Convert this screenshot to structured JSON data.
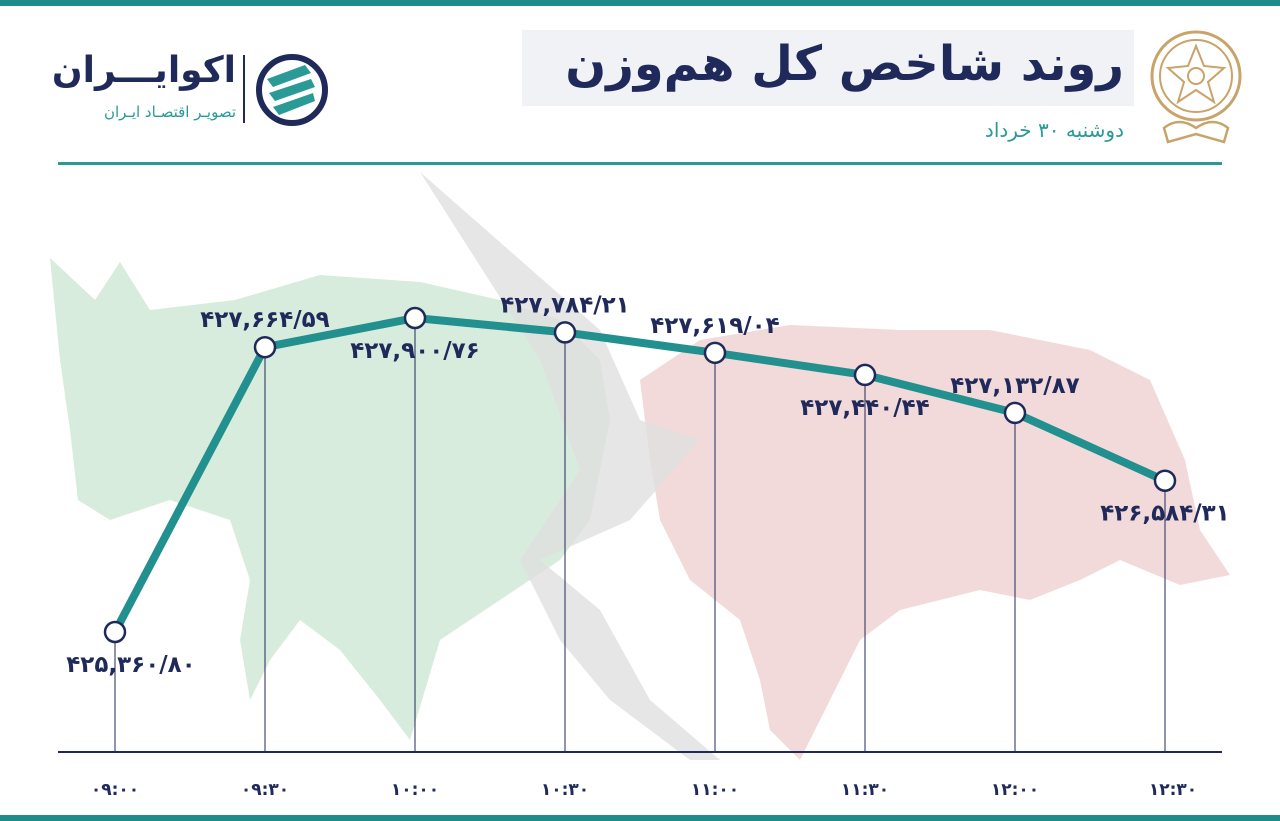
{
  "header": {
    "title": "روند شاخص کل هم‌وزن",
    "subtitle": "دوشنبه ۳۰ خرداد"
  },
  "brand": {
    "name": "اکوایـــران",
    "tagline": "تصویـر اقتصـاد ایـران",
    "mark_icon": "ecoiran-logo-icon",
    "seal_icon": "stock-exchange-seal-icon"
  },
  "colors": {
    "line": "#22908e",
    "labels": "#1f2a5a",
    "bull_bg": "#d7ecdc",
    "bear_bg": "#f1d3d3",
    "arrow_bg": "#e0e0e0"
  },
  "chart_data": {
    "type": "line",
    "categories": [
      "۰۹:۰۰",
      "۰۹:۳۰",
      "۱۰:۰۰",
      "۱۰:۳۰",
      "۱۱:۰۰",
      "۱۱:۳۰",
      "۱۲:۰۰",
      "۱۲:۳۰"
    ],
    "values": [
      425360.8,
      427664.59,
      427900.76,
      427784.21,
      427619.04,
      427440.44,
      427132.87,
      426584.31
    ],
    "value_labels": [
      "۴۲۵,۳۶۰/۸۰",
      "۴۲۷,۶۶۴/۵۹",
      "۴۲۷,۹۰۰/۷۶",
      "۴۲۷,۷۸۴/۲۱",
      "۴۲۷,۶۱۹/۰۴",
      "۴۲۷,۴۴۰/۴۴",
      "۴۲۷,۱۳۲/۸۷",
      "۴۲۶,۵۸۴/۳۱"
    ],
    "ylim": [
      425000,
      428200
    ],
    "grid": false,
    "legend": "none"
  }
}
